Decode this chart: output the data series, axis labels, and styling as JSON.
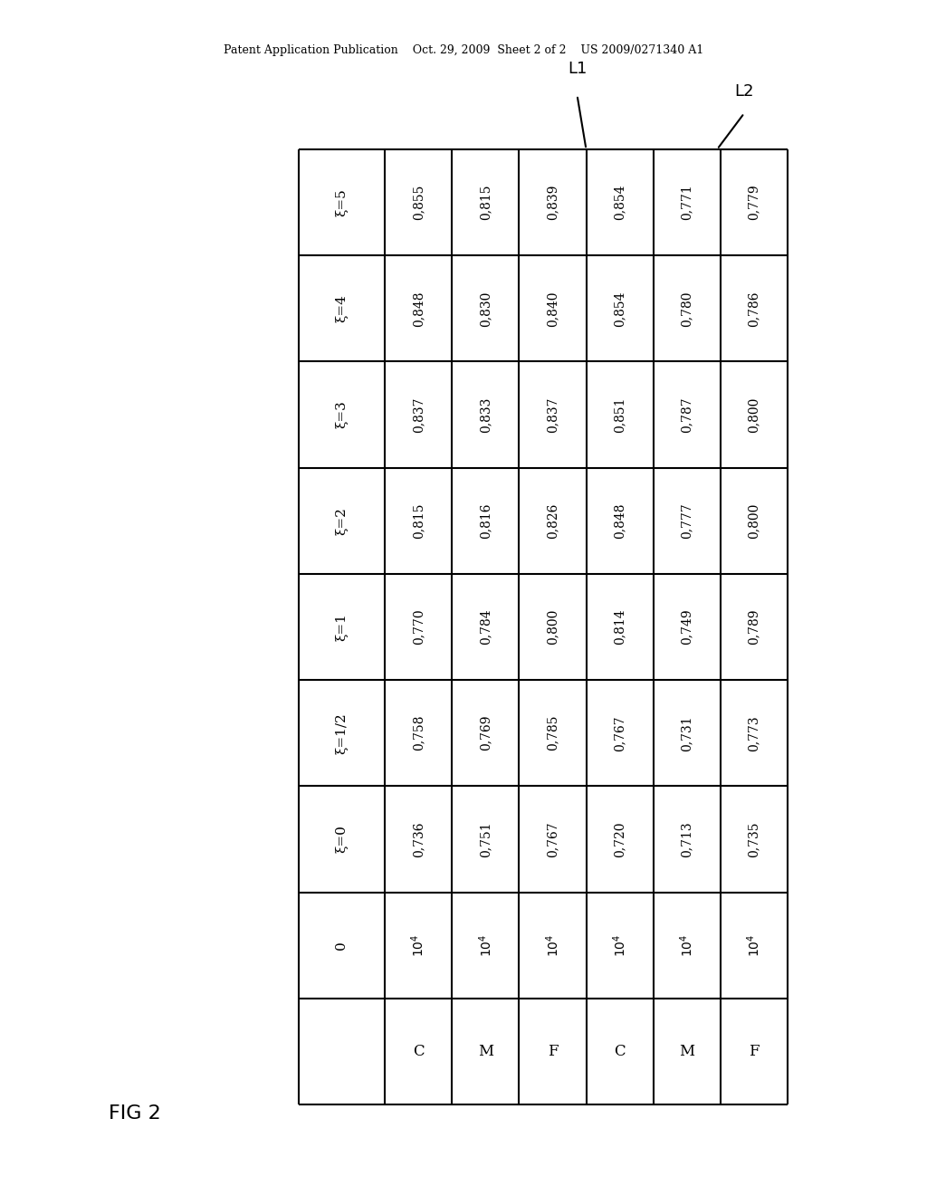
{
  "header_text": "Patent Application Publication    Oct. 29, 2009  Sheet 2 of 2    US 2009/0271340 A1",
  "fig_label": "FIG 2",
  "background_color": "#ffffff",
  "text_color": "#000000",
  "row_headers": [
    "ξ=5",
    "ξ=4",
    "ξ=3",
    "ξ=2",
    "ξ=1",
    "ξ=1/2",
    "ξ=0",
    "0",
    ""
  ],
  "L1_data": [
    [
      "0,855",
      "0,815",
      "0,839"
    ],
    [
      "0,848",
      "0,830",
      "0,840"
    ],
    [
      "0,837",
      "0,833",
      "0,837"
    ],
    [
      "0,815",
      "0,816",
      "0,826"
    ],
    [
      "0,770",
      "0,784",
      "0,800"
    ],
    [
      "0,758",
      "0,769",
      "0,785"
    ],
    [
      "0,736",
      "0,751",
      "0,767"
    ],
    [
      "10⁴",
      "10⁴",
      "10⁴"
    ],
    [
      "C",
      "M",
      "F"
    ]
  ],
  "L2_data": [
    [
      "0,854",
      "0,771",
      "0,779"
    ],
    [
      "0,854",
      "0,780",
      "0,786"
    ],
    [
      "0,851",
      "0,787",
      "0,800"
    ],
    [
      "0,848",
      "0,777",
      "0,800"
    ],
    [
      "0,814",
      "0,749",
      "0,789"
    ],
    [
      "0,767",
      "0,731",
      "0,773"
    ],
    [
      "0,720",
      "0,713",
      "0,735"
    ],
    [
      "10⁴",
      "10⁴",
      "10⁴"
    ],
    [
      "C",
      "M",
      "F"
    ]
  ],
  "l1_label": "L1",
  "l2_label": "L2"
}
